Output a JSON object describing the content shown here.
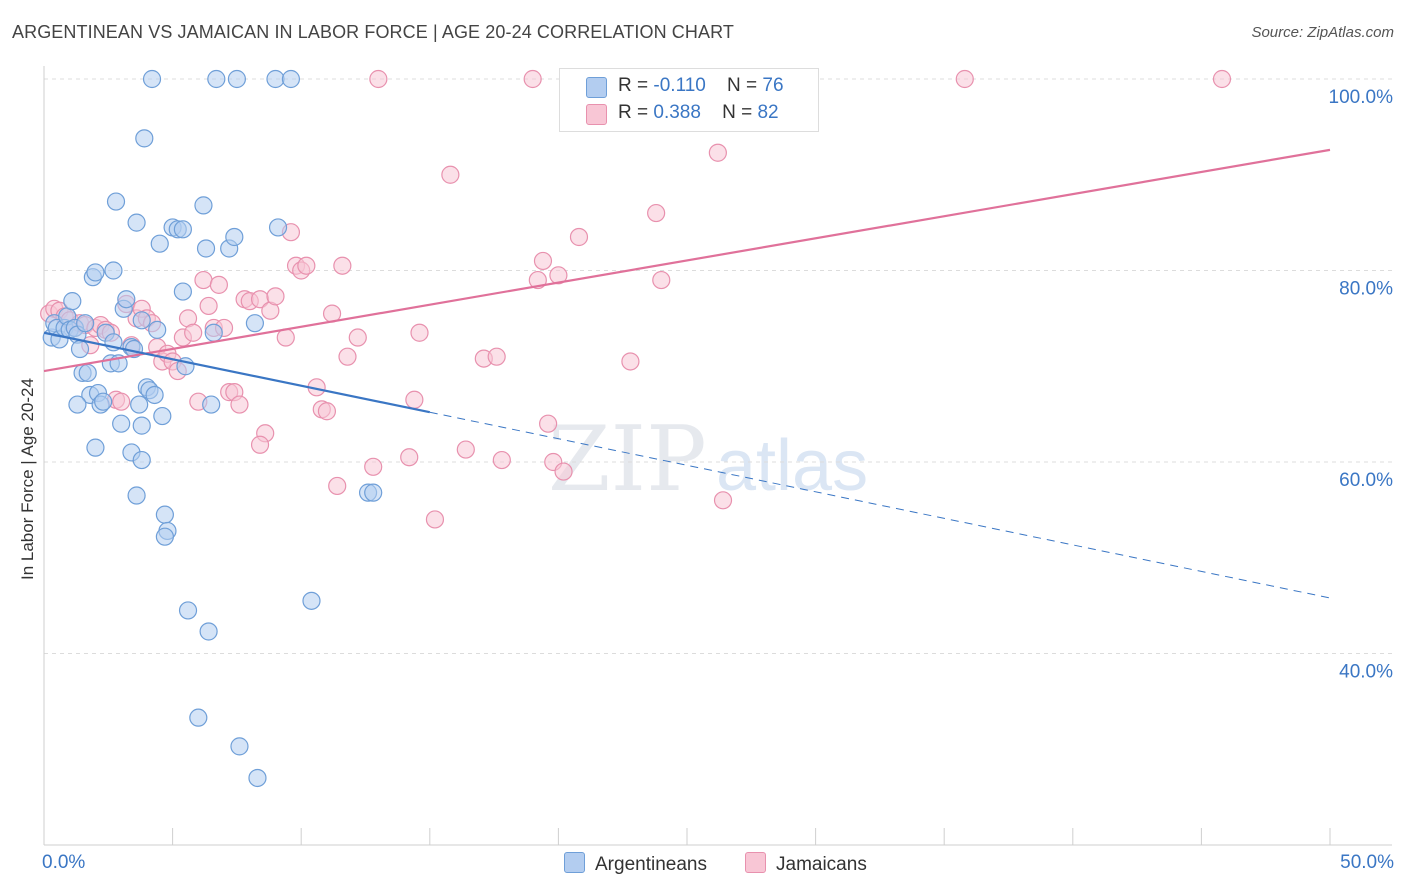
{
  "header": {
    "title": "ARGENTINEAN VS JAMAICAN IN LABOR FORCE | AGE 20-24 CORRELATION CHART",
    "source": "Source: ZipAtlas.com"
  },
  "legend": {
    "rows": [
      {
        "r_label": "R =",
        "r_value": "-0.110",
        "n_label": "N =",
        "n_value": "76"
      },
      {
        "r_label": "R =",
        "r_value": "0.388",
        "n_label": "N =",
        "n_value": "82"
      }
    ]
  },
  "watermark": {
    "zip": "ZIP",
    "atlas": "atlas"
  },
  "colors": {
    "argentineans_fill": "#b3cdf0",
    "argentineans_stroke": "#6f9fd8",
    "argentineans_line": "#3a76c4",
    "jamaicans_fill": "#f8c6d5",
    "jamaicans_stroke": "#e891ae",
    "jamaicans_line": "#e0719a",
    "tick_label": "#3a76c4",
    "grid": "#dcdcdc"
  },
  "chart_data": {
    "type": "scatter",
    "title": "ARGENTINEAN VS JAMAICAN IN LABOR FORCE | AGE 20-24 CORRELATION CHART",
    "xlabel": "",
    "ylabel": "In Labor Force | Age 20-24",
    "xlim": [
      0,
      50
    ],
    "ylim": [
      20,
      104
    ],
    "x_tick_labels": [
      "0.0%",
      "50.0%"
    ],
    "y_ticks": [
      40,
      60,
      80,
      100
    ],
    "y_tick_labels": [
      "40.0%",
      "60.0%",
      "80.0%",
      "100.0%"
    ],
    "grid": "horizontal dashed",
    "legend_position": "top-center",
    "series": [
      {
        "name": "Argentineans",
        "R": -0.11,
        "N": 76,
        "trend": {
          "x": [
            0,
            15
          ],
          "y": [
            73.5,
            65.2
          ],
          "dashed_extension": {
            "x": [
              15,
              50
            ],
            "y": [
              65.2,
              45.8
            ]
          }
        },
        "points": [
          [
            0.3,
            73.0
          ],
          [
            0.4,
            74.5
          ],
          [
            0.5,
            74.0
          ],
          [
            0.6,
            72.8
          ],
          [
            0.8,
            74.0
          ],
          [
            0.9,
            75.2
          ],
          [
            1.0,
            73.8
          ],
          [
            1.1,
            76.8
          ],
          [
            1.2,
            74.0
          ],
          [
            1.3,
            73.3
          ],
          [
            1.4,
            71.8
          ],
          [
            1.5,
            69.3
          ],
          [
            1.6,
            74.5
          ],
          [
            1.7,
            69.3
          ],
          [
            1.8,
            67.0
          ],
          [
            1.9,
            79.3
          ],
          [
            2.0,
            79.8
          ],
          [
            2.1,
            67.2
          ],
          [
            2.2,
            66.0
          ],
          [
            2.3,
            66.3
          ],
          [
            2.0,
            61.5
          ],
          [
            2.4,
            73.5
          ],
          [
            2.6,
            70.3
          ],
          [
            2.7,
            80.0
          ],
          [
            2.7,
            72.5
          ],
          [
            2.8,
            87.2
          ],
          [
            2.9,
            70.3
          ],
          [
            3.0,
            64.0
          ],
          [
            3.1,
            76.0
          ],
          [
            3.2,
            77.0
          ],
          [
            3.4,
            61.0
          ],
          [
            3.4,
            72.0
          ],
          [
            3.5,
            71.8
          ],
          [
            3.6,
            85.0
          ],
          [
            3.6,
            56.5
          ],
          [
            3.7,
            66.0
          ],
          [
            3.8,
            74.8
          ],
          [
            3.8,
            60.2
          ],
          [
            3.8,
            63.8
          ],
          [
            3.9,
            93.8
          ],
          [
            4.0,
            67.8
          ],
          [
            4.1,
            67.5
          ],
          [
            4.2,
            100.0
          ],
          [
            4.3,
            67.0
          ],
          [
            4.4,
            73.8
          ],
          [
            4.5,
            82.8
          ],
          [
            4.6,
            64.8
          ],
          [
            4.7,
            54.5
          ],
          [
            4.8,
            52.8
          ],
          [
            4.7,
            52.2
          ],
          [
            5.0,
            84.5
          ],
          [
            5.2,
            84.3
          ],
          [
            5.4,
            84.3
          ],
          [
            5.5,
            70.0
          ],
          [
            5.4,
            77.8
          ],
          [
            5.6,
            44.5
          ],
          [
            6.0,
            33.3
          ],
          [
            6.2,
            86.8
          ],
          [
            6.3,
            82.3
          ],
          [
            6.4,
            42.3
          ],
          [
            6.5,
            66.0
          ],
          [
            6.6,
            73.5
          ],
          [
            6.7,
            100.0
          ],
          [
            7.2,
            82.3
          ],
          [
            7.4,
            83.5
          ],
          [
            7.5,
            100.0
          ],
          [
            7.6,
            30.3
          ],
          [
            8.2,
            74.5
          ],
          [
            8.3,
            27.0
          ],
          [
            9.0,
            100.0
          ],
          [
            9.1,
            84.5
          ],
          [
            9.6,
            100.0
          ],
          [
            10.4,
            45.5
          ],
          [
            12.6,
            56.8
          ],
          [
            12.8,
            56.8
          ],
          [
            1.3,
            66.0
          ]
        ]
      },
      {
        "name": "Jamaicans",
        "R": 0.388,
        "N": 82,
        "trend": {
          "x": [
            0,
            50
          ],
          "y": [
            69.5,
            92.6
          ]
        },
        "points": [
          [
            0.2,
            75.5
          ],
          [
            0.4,
            76.0
          ],
          [
            0.6,
            75.8
          ],
          [
            0.8,
            75.2
          ],
          [
            1.0,
            74.8
          ],
          [
            1.2,
            74.0
          ],
          [
            1.4,
            74.5
          ],
          [
            1.6,
            74.3
          ],
          [
            1.8,
            72.2
          ],
          [
            2.0,
            74.0
          ],
          [
            2.2,
            74.3
          ],
          [
            2.4,
            73.8
          ],
          [
            2.6,
            73.5
          ],
          [
            2.8,
            66.5
          ],
          [
            3.0,
            66.3
          ],
          [
            3.2,
            76.5
          ],
          [
            3.4,
            72.2
          ],
          [
            3.6,
            75.0
          ],
          [
            3.8,
            76.0
          ],
          [
            4.0,
            75.0
          ],
          [
            4.2,
            74.5
          ],
          [
            4.4,
            72.0
          ],
          [
            4.6,
            70.5
          ],
          [
            4.8,
            71.3
          ],
          [
            5.0,
            70.5
          ],
          [
            5.2,
            69.5
          ],
          [
            5.4,
            73.0
          ],
          [
            5.6,
            75.0
          ],
          [
            5.8,
            73.5
          ],
          [
            6.0,
            66.3
          ],
          [
            6.2,
            79.0
          ],
          [
            6.4,
            76.3
          ],
          [
            6.6,
            74.0
          ],
          [
            6.8,
            78.5
          ],
          [
            7.0,
            74.0
          ],
          [
            7.2,
            67.3
          ],
          [
            7.4,
            67.3
          ],
          [
            7.6,
            66.0
          ],
          [
            7.8,
            77.0
          ],
          [
            8.0,
            76.8
          ],
          [
            8.4,
            77.0
          ],
          [
            8.6,
            63.0
          ],
          [
            8.4,
            61.8
          ],
          [
            8.8,
            75.8
          ],
          [
            9.0,
            77.3
          ],
          [
            9.4,
            73.0
          ],
          [
            9.6,
            84.0
          ],
          [
            9.8,
            80.5
          ],
          [
            10.0,
            80.0
          ],
          [
            10.2,
            80.5
          ],
          [
            10.6,
            67.8
          ],
          [
            10.8,
            65.5
          ],
          [
            11.0,
            65.3
          ],
          [
            11.2,
            75.5
          ],
          [
            11.4,
            57.5
          ],
          [
            11.6,
            80.5
          ],
          [
            11.8,
            71.0
          ],
          [
            12.2,
            73.0
          ],
          [
            12.8,
            59.5
          ],
          [
            13.0,
            100.0
          ],
          [
            14.2,
            60.5
          ],
          [
            14.4,
            66.5
          ],
          [
            14.6,
            73.5
          ],
          [
            15.2,
            54.0
          ],
          [
            15.8,
            90.0
          ],
          [
            16.4,
            61.3
          ],
          [
            17.1,
            70.8
          ],
          [
            17.6,
            71.0
          ],
          [
            17.8,
            60.2
          ],
          [
            19.0,
            100.0
          ],
          [
            19.2,
            79.0
          ],
          [
            19.4,
            81.0
          ],
          [
            19.6,
            64.0
          ],
          [
            19.8,
            60.0
          ],
          [
            20.0,
            79.5
          ],
          [
            20.2,
            59.0
          ],
          [
            20.8,
            83.5
          ],
          [
            22.8,
            70.5
          ],
          [
            23.8,
            86.0
          ],
          [
            24.0,
            79.0
          ],
          [
            26.2,
            92.3
          ],
          [
            26.4,
            56.0
          ]
        ],
        "extra_points": [
          [
            29.3,
            100.0
          ],
          [
            35.8,
            100.0
          ],
          [
            45.8,
            100.0
          ]
        ]
      }
    ]
  }
}
